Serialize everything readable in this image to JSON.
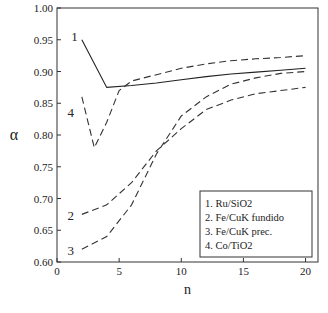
{
  "chart_data": {
    "type": "line",
    "x_label": "n",
    "y_label": "α",
    "xlim": [
      0,
      21
    ],
    "ylim": [
      0.6,
      1.0
    ],
    "xticks": [
      0,
      5,
      10,
      15,
      20
    ],
    "yticks": [
      {
        "value": 0.6,
        "label": "0.60"
      },
      0.65,
      {
        "value": 0.7,
        "label": "0.70"
      },
      0.75,
      {
        "value": 0.8,
        "label": "0.80"
      },
      0.85,
      {
        "value": 0.9,
        "label": "0.90"
      },
      0.95,
      {
        "value": 1.0,
        "label": "1.00"
      }
    ],
    "legend": "lower right",
    "grid": false,
    "series": [
      {
        "name": "1. Ru/SiO2",
        "color": "#222222",
        "line_style": "solid",
        "x": [
          2,
          4,
          6,
          8,
          10,
          12,
          14,
          16,
          18,
          20
        ],
        "values": [
          0.95,
          0.875,
          0.878,
          0.882,
          0.887,
          0.892,
          0.896,
          0.899,
          0.902,
          0.905
        ]
      },
      {
        "name": "2. Fe/CuK fundido",
        "color": "#333333",
        "line_style": "dashed",
        "x": [
          2,
          4,
          6,
          8,
          10,
          12,
          14,
          16,
          18,
          20
        ],
        "values": [
          0.675,
          0.69,
          0.725,
          0.775,
          0.81,
          0.84,
          0.855,
          0.865,
          0.87,
          0.875
        ]
      },
      {
        "name": "3. Fe/CuK prec.",
        "color": "#333333",
        "line_style": "dashed",
        "x": [
          2,
          4,
          6,
          8,
          10,
          12,
          14,
          16,
          18,
          20
        ],
        "values": [
          0.62,
          0.64,
          0.69,
          0.77,
          0.83,
          0.86,
          0.88,
          0.89,
          0.897,
          0.9
        ]
      },
      {
        "name": "4. Co/TiO2",
        "color": "#333333",
        "line_style": "dashed",
        "x": [
          2,
          3,
          4,
          5,
          6,
          8,
          10,
          12,
          14,
          16,
          18,
          20
        ],
        "values": [
          0.86,
          0.78,
          0.82,
          0.87,
          0.885,
          0.895,
          0.905,
          0.912,
          0.917,
          0.92,
          0.922,
          0.925
        ]
      }
    ],
    "annotations": [
      {
        "text": "1",
        "x": 1.4,
        "y": 0.955
      },
      {
        "text": "4",
        "x": 1.1,
        "y": 0.835
      },
      {
        "text": "2",
        "x": 1.1,
        "y": 0.672
      },
      {
        "text": "3",
        "x": 1.1,
        "y": 0.617
      }
    ]
  }
}
